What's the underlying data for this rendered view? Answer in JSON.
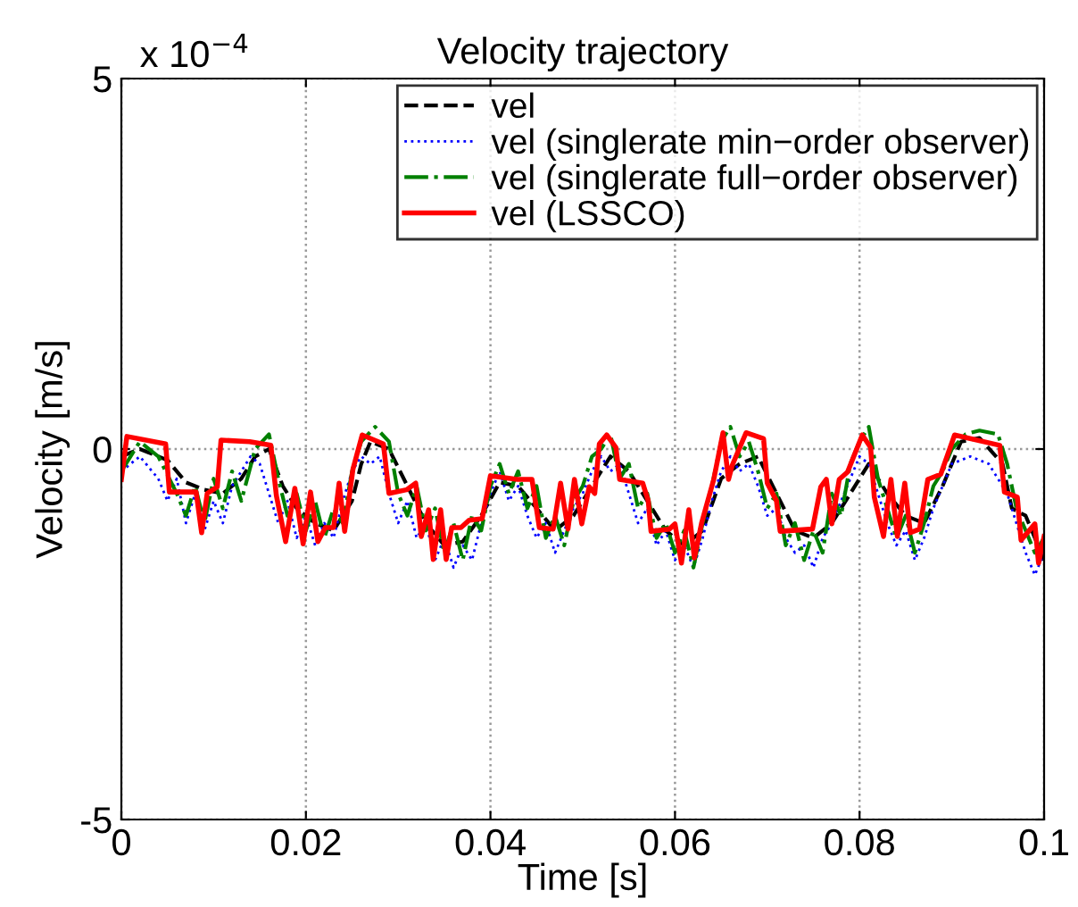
{
  "chart_data": {
    "type": "line",
    "title": "Velocity trajectory",
    "xlabel": "Time [s]",
    "ylabel": "Velocity [m/s]",
    "annotations": [
      "x 10$^{−4}$"
    ],
    "xlim": [
      0,
      0.1
    ],
    "xticks": [
      0,
      0.02,
      0.04,
      0.06,
      0.08,
      0.1
    ],
    "ylim": [
      -5,
      5
    ],
    "yticks": [
      -5,
      0,
      5
    ],
    "grid": true,
    "legend": "top right",
    "series": [
      {
        "name": "vel",
        "color": "#000000",
        "line_style": "dashed",
        "x": [
          0,
          0.002,
          0.005,
          0.007,
          0.009,
          0.011,
          0.013,
          0.0145,
          0.016,
          0.0175,
          0.019,
          0.021,
          0.023,
          0.025,
          0.026,
          0.027,
          0.029,
          0.031,
          0.033,
          0.035,
          0.037,
          0.039,
          0.041,
          0.043,
          0.045,
          0.047,
          0.049,
          0.051,
          0.053,
          0.055,
          0.057,
          0.059,
          0.061,
          0.063,
          0.065,
          0.067,
          0.069,
          0.071,
          0.073,
          0.075,
          0.077,
          0.079,
          0.081,
          0.083,
          0.085,
          0.087,
          0.089,
          0.091,
          0.093,
          0.0955,
          0.0965,
          0.098,
          0.1
        ],
        "values": [
          -0.1,
          0.0,
          -0.15,
          -0.45,
          -0.55,
          -0.6,
          -0.4,
          -0.1,
          0.0,
          -0.5,
          -0.8,
          -1.0,
          -1.1,
          -0.7,
          -0.2,
          0.1,
          0.0,
          -0.5,
          -1.0,
          -1.3,
          -1.25,
          -0.9,
          -0.45,
          -0.5,
          -0.8,
          -1.1,
          -0.9,
          -0.5,
          -0.1,
          -0.3,
          -0.7,
          -1.1,
          -1.3,
          -1.1,
          -0.4,
          -0.2,
          -0.1,
          -0.6,
          -1.1,
          -1.2,
          -1.0,
          -0.6,
          -0.2,
          -0.6,
          -0.9,
          -1.0,
          -0.5,
          0.1,
          0.15,
          -0.2,
          -0.8,
          -0.9,
          -1.5
        ]
      },
      {
        "name": "vel (singlerate min−order observer)",
        "color": "#0000ff",
        "line_style": "dotted",
        "x": [
          0,
          0.002,
          0.004,
          0.005,
          0.006,
          0.007,
          0.008,
          0.009,
          0.01,
          0.011,
          0.012,
          0.013,
          0.014,
          0.015,
          0.016,
          0.017,
          0.018,
          0.019,
          0.02,
          0.021,
          0.022,
          0.023,
          0.024,
          0.025,
          0.026,
          0.027,
          0.028,
          0.029,
          0.03,
          0.031,
          0.032,
          0.033,
          0.034,
          0.035,
          0.036,
          0.037,
          0.038,
          0.039,
          0.04,
          0.041,
          0.042,
          0.043,
          0.044,
          0.045,
          0.046,
          0.047,
          0.048,
          0.049,
          0.05,
          0.051,
          0.052,
          0.053,
          0.054,
          0.055,
          0.056,
          0.057,
          0.058,
          0.059,
          0.06,
          0.061,
          0.062,
          0.063,
          0.064,
          0.065,
          0.066,
          0.067,
          0.068,
          0.069,
          0.07,
          0.071,
          0.072,
          0.073,
          0.074,
          0.075,
          0.076,
          0.077,
          0.078,
          0.079,
          0.08,
          0.081,
          0.082,
          0.083,
          0.084,
          0.085,
          0.086,
          0.087,
          0.088,
          0.089,
          0.09,
          0.092,
          0.094,
          0.096,
          0.097,
          0.098,
          0.099,
          0.1
        ],
        "values": [
          -0.3,
          -0.1,
          -0.4,
          -0.7,
          -0.4,
          -1.0,
          -0.6,
          -1.1,
          -0.7,
          -1.0,
          -0.5,
          -0.3,
          -0.1,
          -0.2,
          -0.6,
          -1.0,
          -0.7,
          -1.2,
          -0.9,
          -1.3,
          -1.0,
          -1.2,
          -0.7,
          -0.3,
          -0.1,
          -0.2,
          -0.1,
          -0.6,
          -1.0,
          -0.7,
          -1.2,
          -1.0,
          -1.5,
          -1.2,
          -1.6,
          -1.3,
          -1.5,
          -1.0,
          -0.6,
          -0.3,
          -0.7,
          -0.5,
          -0.9,
          -1.2,
          -1.0,
          -1.4,
          -1.1,
          -0.8,
          -0.6,
          -0.3,
          -0.1,
          -0.3,
          -0.2,
          -0.6,
          -1.0,
          -0.8,
          -1.3,
          -1.1,
          -1.5,
          -1.3,
          -1.6,
          -1.2,
          -0.7,
          -0.3,
          -0.1,
          -0.3,
          -0.2,
          -0.5,
          -0.9,
          -0.8,
          -1.2,
          -1.4,
          -1.3,
          -1.6,
          -1.2,
          -1.0,
          -0.7,
          -0.4,
          -0.1,
          -0.2,
          -0.6,
          -1.0,
          -1.3,
          -1.1,
          -1.5,
          -1.2,
          -0.8,
          -0.5,
          -0.2,
          -0.1,
          -0.2,
          -0.6,
          -1.0,
          -1.4,
          -1.7,
          -1.4
        ]
      },
      {
        "name": "vel (singlerate full−order observer)",
        "color": "#008000",
        "line_style": "dashdot",
        "x": [
          0,
          0.002,
          0.004,
          0.006,
          0.007,
          0.008,
          0.009,
          0.01,
          0.011,
          0.012,
          0.013,
          0.0145,
          0.016,
          0.017,
          0.018,
          0.019,
          0.02,
          0.021,
          0.022,
          0.023,
          0.024,
          0.025,
          0.026,
          0.0275,
          0.029,
          0.03,
          0.031,
          0.032,
          0.033,
          0.034,
          0.035,
          0.036,
          0.037,
          0.038,
          0.039,
          0.04,
          0.041,
          0.042,
          0.043,
          0.044,
          0.045,
          0.046,
          0.047,
          0.048,
          0.049,
          0.05,
          0.051,
          0.052,
          0.053,
          0.054,
          0.055,
          0.056,
          0.057,
          0.058,
          0.059,
          0.06,
          0.061,
          0.062,
          0.063,
          0.064,
          0.065,
          0.066,
          0.067,
          0.068,
          0.069,
          0.07,
          0.071,
          0.072,
          0.073,
          0.074,
          0.075,
          0.076,
          0.077,
          0.078,
          0.079,
          0.08,
          0.081,
          0.082,
          0.083,
          0.084,
          0.085,
          0.086,
          0.087,
          0.088,
          0.089,
          0.09,
          0.0915,
          0.093,
          0.095,
          0.096,
          0.097,
          0.098,
          0.099,
          0.1
        ],
        "values": [
          -0.3,
          0.1,
          -0.1,
          -0.6,
          -0.9,
          -0.5,
          -1.0,
          -0.4,
          -0.8,
          -0.3,
          -0.7,
          0.0,
          0.2,
          -0.4,
          -0.9,
          -0.6,
          -1.1,
          -0.7,
          -1.2,
          -0.8,
          -1.0,
          -0.3,
          0.1,
          0.3,
          0.1,
          -0.6,
          -0.9,
          -0.5,
          -1.1,
          -0.8,
          -1.4,
          -1.0,
          -1.5,
          -0.9,
          -1.1,
          -0.5,
          -0.2,
          -0.6,
          -0.3,
          -0.8,
          -0.5,
          -1.2,
          -0.9,
          -1.3,
          -0.7,
          -0.5,
          -0.1,
          0.0,
          0.2,
          -0.4,
          -0.2,
          -0.8,
          -0.6,
          -1.2,
          -1.0,
          -1.4,
          -1.1,
          -1.6,
          -1.0,
          -0.5,
          0.1,
          0.3,
          -0.1,
          0.1,
          -0.3,
          -0.8,
          -0.6,
          -1.3,
          -1.0,
          -1.5,
          -1.1,
          -1.4,
          -0.6,
          -0.9,
          -0.2,
          0.1,
          0.3,
          -0.4,
          -0.8,
          -1.2,
          -0.9,
          -1.4,
          -1.0,
          -0.5,
          -0.3,
          0.0,
          0.2,
          0.25,
          0.2,
          -0.2,
          -0.8,
          -1.1,
          -1.4,
          -1.2
        ]
      },
      {
        "name": "vel (LSSCO)",
        "color": "#ff0000",
        "line_style": "solid",
        "x": [
          0,
          0.0006,
          0.0048,
          0.0052,
          0.0081,
          0.0087,
          0.0093,
          0.0104,
          0.0108,
          0.0139,
          0.0162,
          0.0168,
          0.0178,
          0.0188,
          0.0197,
          0.0205,
          0.0213,
          0.0221,
          0.023,
          0.0236,
          0.0242,
          0.0251,
          0.0261,
          0.0284,
          0.029,
          0.0309,
          0.0319,
          0.0325,
          0.0333,
          0.0338,
          0.0346,
          0.0352,
          0.0358,
          0.0368,
          0.0377,
          0.0391,
          0.04,
          0.0429,
          0.0445,
          0.0453,
          0.0468,
          0.0476,
          0.0484,
          0.0491,
          0.0499,
          0.0507,
          0.0513,
          0.0518,
          0.0526,
          0.0536,
          0.054,
          0.0565,
          0.0571,
          0.0574,
          0.0594,
          0.06,
          0.0607,
          0.0615,
          0.0621,
          0.0629,
          0.0642,
          0.0652,
          0.0658,
          0.0662,
          0.0677,
          0.0696,
          0.07,
          0.071,
          0.0714,
          0.0749,
          0.0758,
          0.0764,
          0.077,
          0.0778,
          0.0787,
          0.0803,
          0.0812,
          0.0816,
          0.0826,
          0.0834,
          0.0841,
          0.0849,
          0.0855,
          0.0865,
          0.0874,
          0.0888,
          0.0903,
          0.0952,
          0.0957,
          0.0971,
          0.0975,
          0.099,
          0.0994,
          0.1
        ],
        "values": [
          -0.41,
          0.17,
          0.07,
          -0.58,
          -0.58,
          -1.13,
          -0.6,
          -0.51,
          0.12,
          0.1,
          0.05,
          -0.63,
          -1.25,
          -0.53,
          -1.28,
          -0.58,
          -1.25,
          -1.06,
          -1.06,
          -0.46,
          -1.11,
          -0.27,
          0.19,
          0.07,
          -0.6,
          -0.55,
          -0.46,
          -1.18,
          -0.82,
          -1.49,
          -0.82,
          -1.49,
          -1.06,
          -1.06,
          -0.96,
          -0.94,
          -0.36,
          -0.41,
          -0.41,
          -1.06,
          -1.08,
          -0.46,
          -1.08,
          -0.41,
          -1.01,
          -0.51,
          -0.6,
          0.07,
          0.19,
          0.02,
          -0.41,
          -0.46,
          -0.7,
          -1.11,
          -1.08,
          -1.01,
          -1.54,
          -0.82,
          -1.47,
          -0.99,
          -0.41,
          0.22,
          -0.41,
          -0.22,
          0.22,
          0.14,
          -0.46,
          -0.7,
          -1.11,
          -1.08,
          -0.51,
          -0.41,
          -1.01,
          -0.41,
          -0.31,
          0.19,
          0.02,
          -0.65,
          -1.18,
          -0.41,
          -1.18,
          -0.46,
          -1.13,
          -1.08,
          -0.41,
          -0.34,
          0.19,
          0.05,
          -0.58,
          -0.65,
          -1.23,
          -1.01,
          -1.54,
          -1.18
        ]
      }
    ]
  }
}
